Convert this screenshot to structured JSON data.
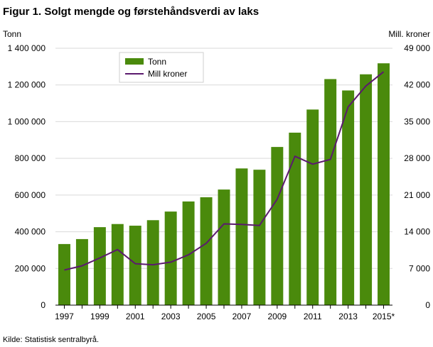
{
  "title": "Figur 1. Solgt mengde og førstehåndsverdi av laks",
  "ylabel_left": "Tonn",
  "ylabel_right": "Mill. kroner",
  "source": "Kilde: Statistisk sentralbyrå.",
  "colors": {
    "bar": "#4a8a0c",
    "line": "#5b1a6e",
    "axis": "#000000",
    "grid": "#d9d9d9"
  },
  "chart_data": {
    "type": "bar",
    "categories": [
      "1997",
      "1998",
      "1999",
      "2000",
      "2001",
      "2002",
      "2003",
      "2004",
      "2005",
      "2006",
      "2007",
      "2008",
      "2009",
      "2010",
      "2011",
      "2012",
      "2013",
      "2014",
      "2015*"
    ],
    "x_tick_labels": [
      "1997",
      "1999",
      "2001",
      "2003",
      "2005",
      "2007",
      "2009",
      "2011",
      "2013",
      "2015*"
    ],
    "series": [
      {
        "name": "Tonn",
        "type": "bar",
        "axis": "left",
        "values": [
          333000,
          360000,
          425000,
          442000,
          433000,
          463000,
          510000,
          565000,
          588000,
          630000,
          745000,
          738000,
          862000,
          940000,
          1066000,
          1232000,
          1170000,
          1258000,
          1318000
        ]
      },
      {
        "name": "Mill kroner",
        "type": "line",
        "axis": "right",
        "values": [
          6700,
          7500,
          9000,
          10600,
          7900,
          7700,
          8200,
          9600,
          11800,
          15500,
          15400,
          15200,
          20200,
          28400,
          26900,
          27800,
          37800,
          41800,
          44500
        ]
      }
    ],
    "ylim_left": [
      0,
      1400000
    ],
    "ylim_right": [
      0,
      49000
    ],
    "yticks_left": [
      "0",
      "200 000",
      "400 000",
      "600 000",
      "800 000",
      "1 000 000",
      "1 200 000",
      "1 400 000"
    ],
    "yticks_right": [
      "0",
      "7 000",
      "14 000",
      "21 000",
      "28 000",
      "35 000",
      "42 000",
      "49 000"
    ],
    "grid": true,
    "legend_position": "top-left"
  }
}
